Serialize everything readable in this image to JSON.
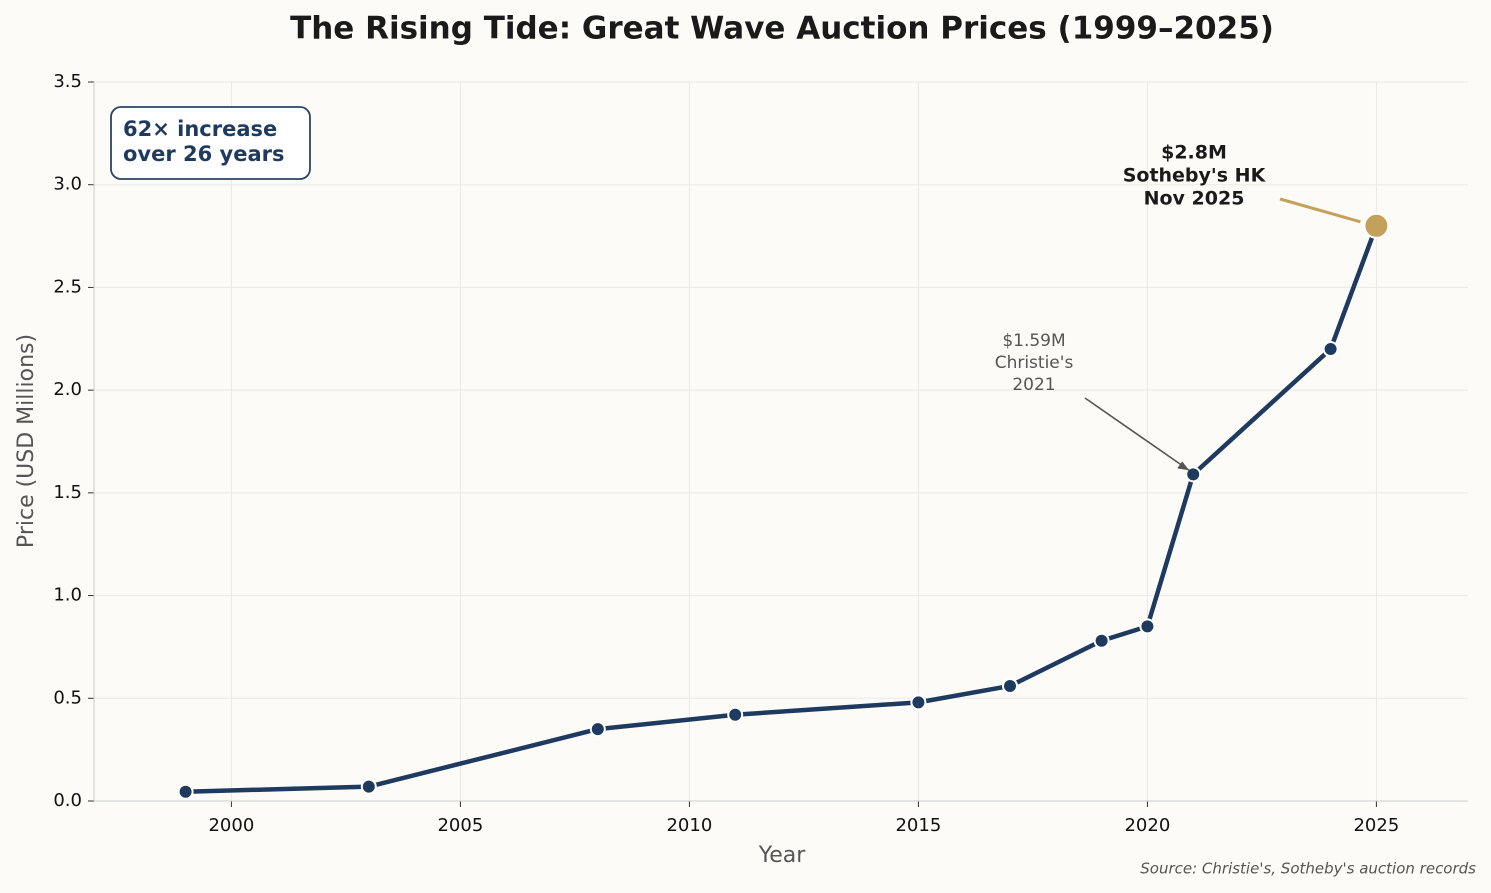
{
  "chart_data": {
    "type": "line",
    "title": "The Rising Tide: Great Wave Auction Prices (1999–2025)",
    "xlabel": "Year",
    "ylabel": "Price (USD Millions)",
    "x": [
      1999,
      2003,
      2008,
      2011,
      2015,
      2017,
      2019,
      2020,
      2021,
      2024,
      2025
    ],
    "series": [
      {
        "name": "Great Wave",
        "color": "#1f3a5f",
        "values": [
          0.045,
          0.07,
          0.35,
          0.42,
          0.48,
          0.56,
          0.78,
          0.85,
          1.59,
          2.2,
          2.8
        ]
      }
    ],
    "highlight_color": "#c4a15a",
    "xlim": [
      1997,
      2027
    ],
    "xticks": [
      2000,
      2005,
      2010,
      2015,
      2020,
      2025
    ],
    "ylim": [
      0,
      3.5
    ],
    "yticks": [
      {
        "value": 0,
        "label": "0.0"
      },
      0.5,
      {
        "value": 1,
        "label": "1.0"
      },
      1.5,
      {
        "value": 2,
        "label": "2.0"
      },
      2.5,
      {
        "value": 3,
        "label": "3.0"
      },
      3.5
    ],
    "grid": true,
    "annotations": [
      {
        "lines": [
          "$1.59M",
          "Christie's",
          "2021"
        ]
      },
      {
        "lines": [
          "$2.8M",
          "Sotheby's HK",
          "Nov 2025"
        ]
      }
    ],
    "textbox": {
      "lines": [
        "62× increase",
        "over 26 years"
      ]
    },
    "source": "Source: Christie's, Sotheby's auction records"
  }
}
